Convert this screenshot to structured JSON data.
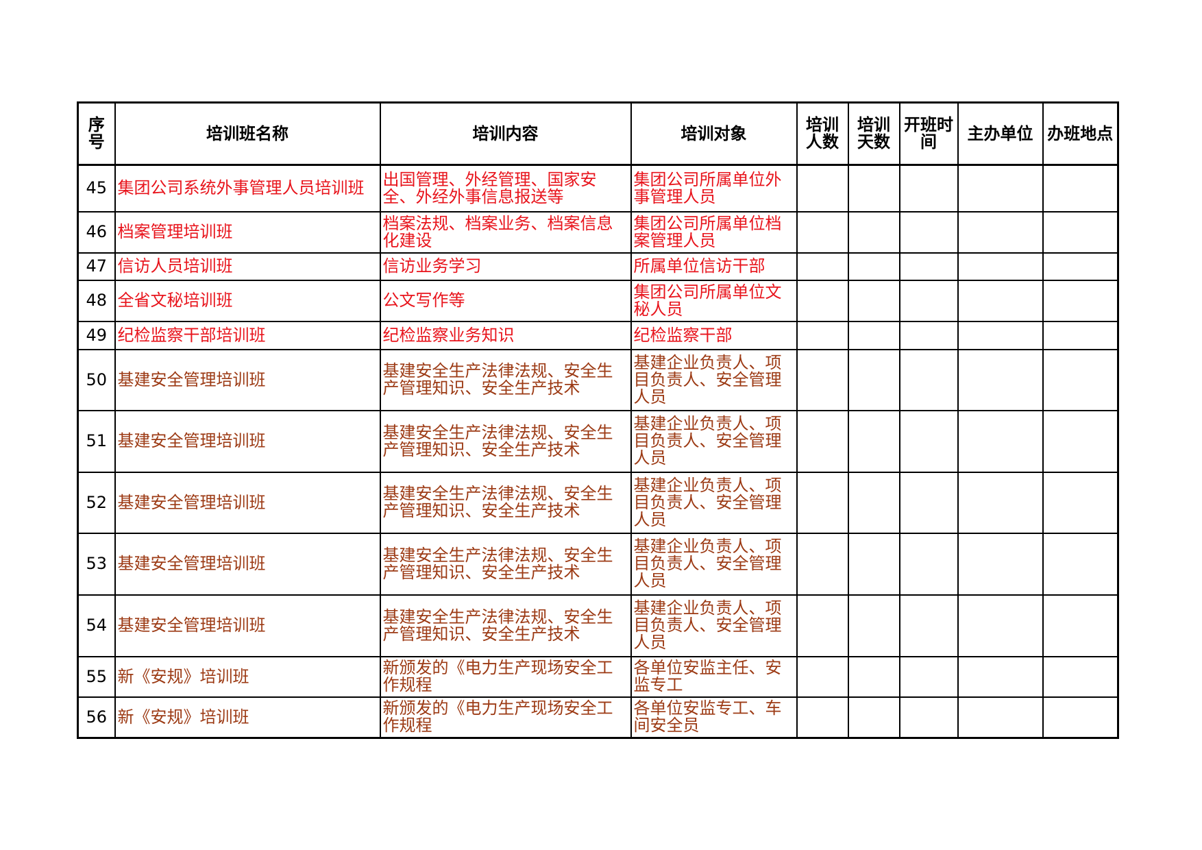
{
  "header": [
    "序号",
    "培训班名称",
    "培训内容",
    "培训对象",
    "培训人数",
    "培训天数",
    "开班时间",
    "主办单位",
    "办班地点"
  ],
  "rows": [
    {
      "color": "#e8141c",
      "cells": [
        "45",
        "集团公司系统外事管理人员培训班",
        "出国管理、外经管理、国家安全、外经外事信息报送等",
        "集团公司所属单位外事管理人员"
      ]
    },
    {
      "color": "#e8141c",
      "cells": [
        "46",
        "档案管理培训班",
        "档案法规、档案业务、档案信息化建设",
        "集团公司所属单位档案管理人员"
      ]
    },
    {
      "color": "#e8141c",
      "cells": [
        "47",
        "信访人员培训班",
        "信访业务学习",
        "所属单位信访干部"
      ]
    },
    {
      "color": "#e8141c",
      "cells": [
        "48",
        "全省文秘培训班",
        "公文写作等",
        "集团公司所属单位文秘人员"
      ]
    },
    {
      "color": "#e8141c",
      "cells": [
        "49",
        "纪检监察干部培训班",
        "纪检监察业务知识",
        "纪检监察干部"
      ]
    },
    {
      "color": "#9c3a14",
      "cells": [
        "50",
        "基建安全管理培训班",
        "基建安全生产法律法规、安全生产管理知识、安全生产技术",
        "基建企业负责人、项目负责人、安全管理人员"
      ]
    },
    {
      "color": "#9c3a14",
      "cells": [
        "51",
        "基建安全管理培训班",
        "基建安全生产法律法规、安全生产管理知识、安全生产技术",
        "基建企业负责人、项目负责人、安全管理人员"
      ]
    },
    {
      "color": "#9c3a14",
      "cells": [
        "52",
        "基建安全管理培训班",
        "基建安全生产法律法规、安全生产管理知识、安全生产技术",
        "基建企业负责人、项目负责人、安全管理人员"
      ]
    },
    {
      "color": "#9c3a14",
      "cells": [
        "53",
        "基建安全管理培训班",
        "基建安全生产法律法规、安全生产管理知识、安全生产技术",
        "基建企业负责人、项目负责人、安全管理人员"
      ]
    },
    {
      "color": "#9c3a14",
      "cells": [
        "54",
        "基建安全管理培训班",
        "基建安全生产法律法规、安全生产管理知识、安全生产技术",
        "基建企业负责人、项目负责人、安全管理人员"
      ]
    },
    {
      "color": "#9c3a14",
      "cells": [
        "55",
        "新《安规》培训班",
        "新颁发的《电力生产现场安全工作规程",
        "各单位安监主任、安监专工"
      ]
    },
    {
      "color": "#9c3a14",
      "cells": [
        "56",
        "新《安规》培训班",
        "新颁发的《电力生产现场安全工作规程",
        "各单位安监专工、车间安全员"
      ]
    }
  ]
}
